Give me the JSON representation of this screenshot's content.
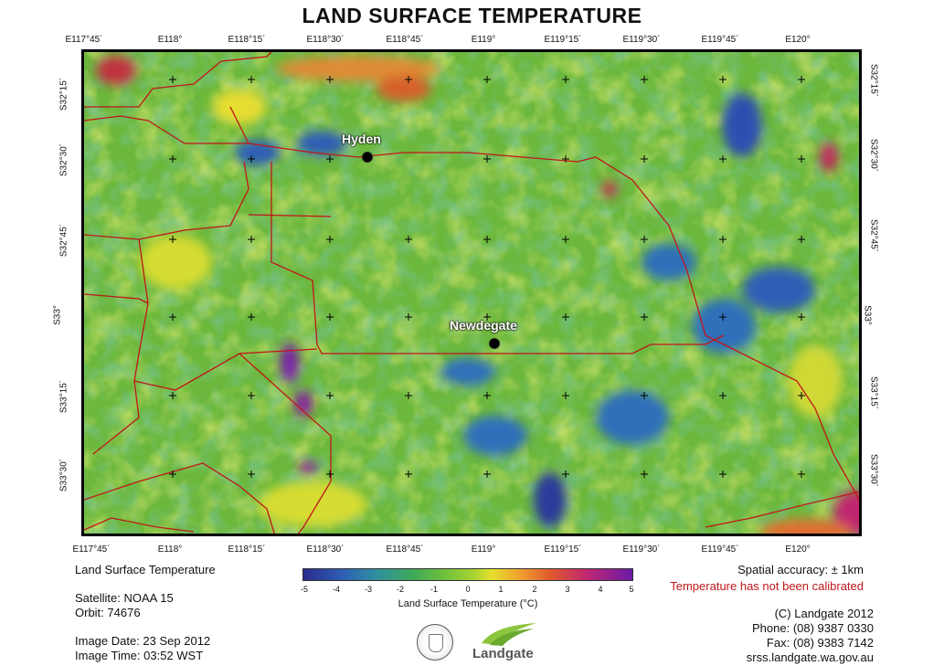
{
  "title": "LAND SURFACE TEMPERATURE",
  "longitude_ticks": [
    "E117°45´",
    "E118°",
    "E118°15´",
    "E118°30´",
    "E118°45´",
    "E119°",
    "E119°15´",
    "E119°30´",
    "E119°45´",
    "E120°"
  ],
  "latitude_ticks": [
    "S32°15´",
    "S32°30´",
    "S32°45´",
    "S33°",
    "S33°15´",
    "S33°30´"
  ],
  "places": [
    {
      "name": "Hyden",
      "lon": 118.87,
      "lat": -32.45
    },
    {
      "name": "Newdegate",
      "lon": 119.02,
      "lat": -33.09
    }
  ],
  "legend": {
    "title": "Land Surface Temperature (°C)",
    "ticks": [
      "-5",
      "-4",
      "-3",
      "-2",
      "-1",
      "0",
      "1",
      "2",
      "3",
      "4",
      "5"
    ],
    "min": -5,
    "max": 5
  },
  "info_left": {
    "product": "Land Surface Temperature",
    "satellite": "Satellite: NOAA 15",
    "orbit": "Orbit: 74676",
    "image_date": "Image Date: 23 Sep 2012",
    "image_time": "Image Time: 03:52 WST"
  },
  "info_right": {
    "accuracy": "Spatial accuracy: ± 1km",
    "calibration_note": "Temperature has not been calibrated",
    "copyright": "(C) Landgate 2012",
    "phone": "Phone: (08) 9387 0330",
    "fax": "Fax: (08) 9383 7142",
    "website": "srss.landgate.wa.gov.au"
  },
  "logo": {
    "agency_seal_icon": "government-crest-icon",
    "brand": "Landgate"
  },
  "colors": {
    "cold": "#2a2a8c",
    "cool": "#3da95a",
    "neutral": "#a8d432",
    "warm": "#f0a030",
    "hot": "#6a1aa8",
    "boundary": "#c0161a"
  }
}
